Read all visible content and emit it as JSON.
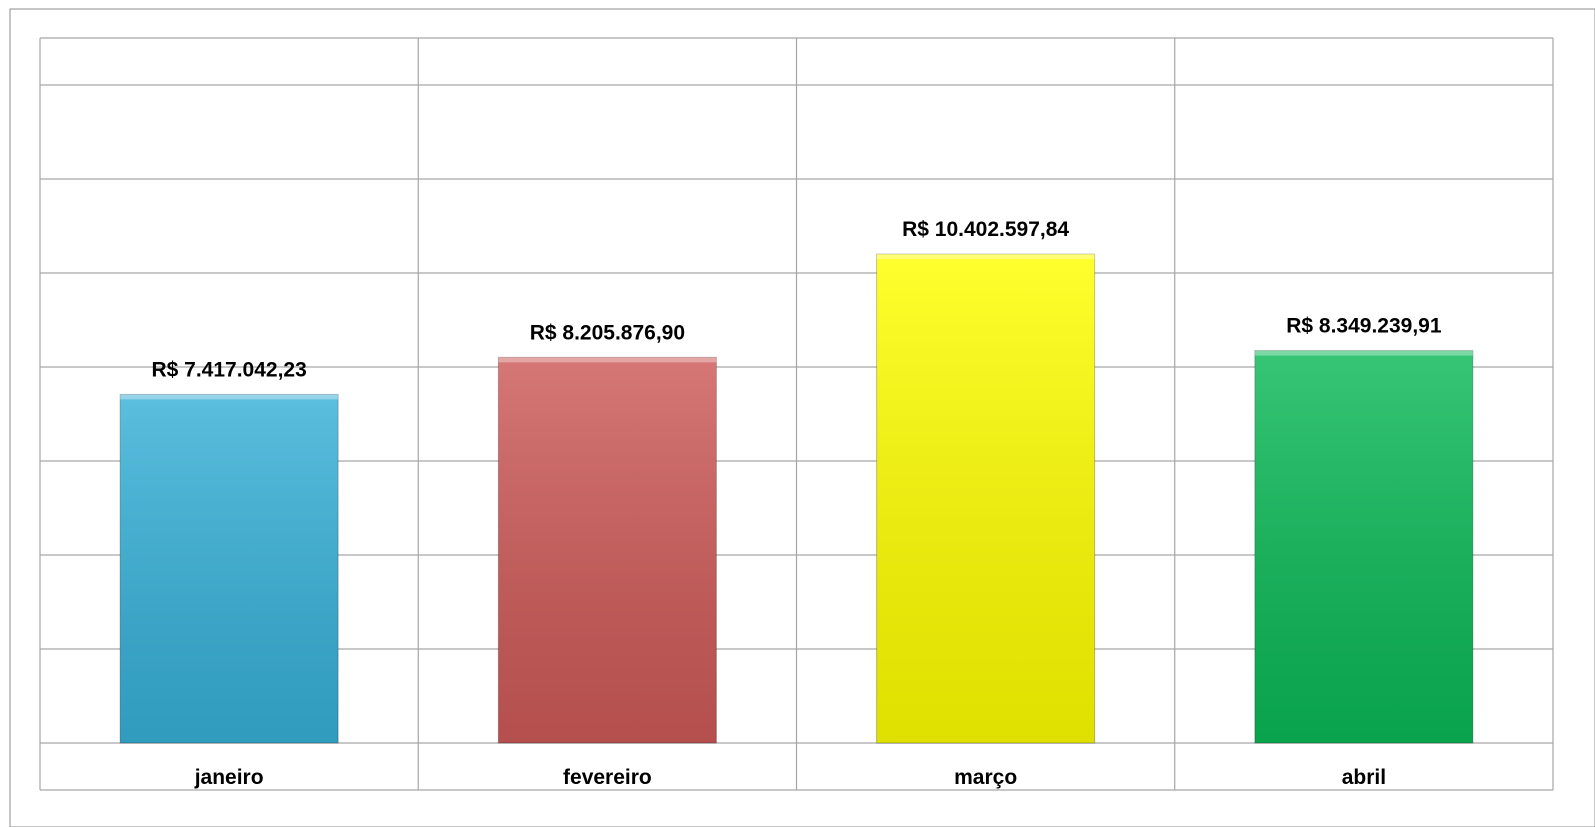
{
  "chart_data": {
    "type": "bar",
    "title": "",
    "xlabel": "",
    "ylabel": "",
    "categories": [
      "janeiro",
      "fevereiro",
      "março",
      "abril"
    ],
    "values": [
      7417042.23,
      8205876.9,
      10402597.84,
      8349239.91
    ],
    "data_labels": [
      "R$ 7.417.042,23",
      "R$ 8.205.876,90",
      "R$ 10.402.597,84",
      "R$ 8.349.239,91"
    ],
    "colors": [
      "#37b1d8",
      "#cd5a58",
      "#ffff00",
      "#0bb957"
    ],
    "ylim": [
      0,
      15000000
    ],
    "grid": true,
    "legend": "none"
  }
}
